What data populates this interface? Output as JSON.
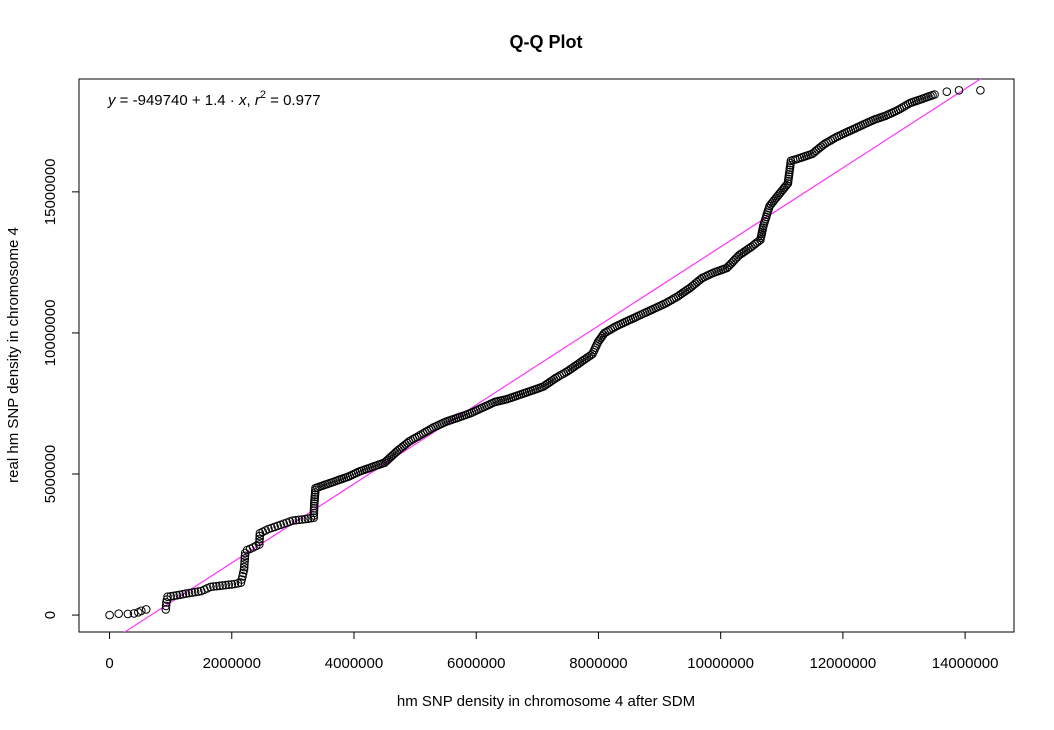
{
  "chart_data": {
    "type": "scatter",
    "title": "Q-Q Plot",
    "xlabel": "hm SNP density in chromosome 4 after SDM",
    "ylabel": "real hm SNP density in chromosome 4",
    "xlim": [
      -500000,
      14800000
    ],
    "ylim": [
      -600000,
      19000000
    ],
    "x_ticks": [
      0,
      2000000,
      4000000,
      6000000,
      8000000,
      10000000,
      12000000,
      14000000
    ],
    "x_tick_labels": [
      "0",
      "2000000",
      "4000000",
      "6000000",
      "8000000",
      "10000000",
      "12000000",
      "14000000"
    ],
    "y_ticks": [
      0,
      5000000,
      10000000,
      15000000
    ],
    "y_tick_labels": [
      "0",
      "5000000",
      "10000000",
      "15000000"
    ],
    "grid": false,
    "marker": "open-circle",
    "point_color": "#000000",
    "fit_line": {
      "intercept": -949740,
      "slope": 1.4,
      "color": "#ff33ff"
    },
    "annotation": {
      "y_var": "y",
      "intercept_text": "-949740",
      "slope_text": "1.4",
      "x_var": "x",
      "r_var": "r",
      "r_exp": "2",
      "r2_text": "0.977"
    },
    "points": [
      [
        0,
        0
      ],
      [
        150000,
        50000
      ],
      [
        300000,
        40000
      ],
      [
        400000,
        60000
      ],
      [
        470000,
        100000
      ],
      [
        520000,
        150000
      ],
      [
        600000,
        200000
      ],
      [
        920000,
        200000
      ],
      [
        930000,
        450000
      ],
      [
        950000,
        650000
      ],
      [
        1100000,
        700000
      ],
      [
        1300000,
        780000
      ],
      [
        1500000,
        850000
      ],
      [
        1650000,
        1000000
      ],
      [
        1850000,
        1050000
      ],
      [
        2050000,
        1100000
      ],
      [
        2150000,
        1150000
      ],
      [
        2200000,
        1600000
      ],
      [
        2220000,
        2200000
      ],
      [
        2250000,
        2300000
      ],
      [
        2450000,
        2500000
      ],
      [
        2460000,
        2900000
      ],
      [
        2600000,
        3050000
      ],
      [
        2800000,
        3200000
      ],
      [
        3000000,
        3350000
      ],
      [
        3200000,
        3400000
      ],
      [
        3340000,
        3450000
      ],
      [
        3350000,
        3950000
      ],
      [
        3370000,
        4500000
      ],
      [
        3500000,
        4600000
      ],
      [
        3700000,
        4750000
      ],
      [
        3900000,
        4900000
      ],
      [
        4100000,
        5100000
      ],
      [
        4300000,
        5250000
      ],
      [
        4500000,
        5400000
      ],
      [
        4700000,
        5800000
      ],
      [
        4900000,
        6150000
      ],
      [
        5100000,
        6400000
      ],
      [
        5300000,
        6650000
      ],
      [
        5500000,
        6850000
      ],
      [
        5700000,
        7000000
      ],
      [
        5900000,
        7150000
      ],
      [
        6100000,
        7350000
      ],
      [
        6300000,
        7550000
      ],
      [
        6500000,
        7650000
      ],
      [
        6700000,
        7800000
      ],
      [
        6900000,
        7950000
      ],
      [
        7100000,
        8100000
      ],
      [
        7300000,
        8400000
      ],
      [
        7500000,
        8650000
      ],
      [
        7700000,
        8950000
      ],
      [
        7900000,
        9250000
      ],
      [
        8000000,
        9700000
      ],
      [
        8100000,
        10000000
      ],
      [
        8300000,
        10250000
      ],
      [
        8500000,
        10450000
      ],
      [
        8700000,
        10650000
      ],
      [
        8900000,
        10850000
      ],
      [
        9100000,
        11050000
      ],
      [
        9300000,
        11300000
      ],
      [
        9500000,
        11600000
      ],
      [
        9700000,
        11950000
      ],
      [
        9900000,
        12150000
      ],
      [
        10100000,
        12300000
      ],
      [
        10300000,
        12750000
      ],
      [
        10500000,
        13050000
      ],
      [
        10650000,
        13300000
      ],
      [
        10700000,
        13800000
      ],
      [
        10800000,
        14500000
      ],
      [
        10950000,
        14900000
      ],
      [
        11100000,
        15300000
      ],
      [
        11150000,
        16100000
      ],
      [
        11300000,
        16200000
      ],
      [
        11500000,
        16350000
      ],
      [
        11700000,
        16700000
      ],
      [
        11900000,
        16950000
      ],
      [
        12100000,
        17150000
      ],
      [
        12300000,
        17350000
      ],
      [
        12500000,
        17550000
      ],
      [
        12700000,
        17700000
      ],
      [
        12900000,
        17900000
      ],
      [
        13100000,
        18150000
      ],
      [
        13300000,
        18300000
      ],
      [
        13500000,
        18450000
      ],
      [
        13700000,
        18550000
      ],
      [
        13900000,
        18600000
      ],
      [
        14250000,
        18600000
      ]
    ]
  }
}
